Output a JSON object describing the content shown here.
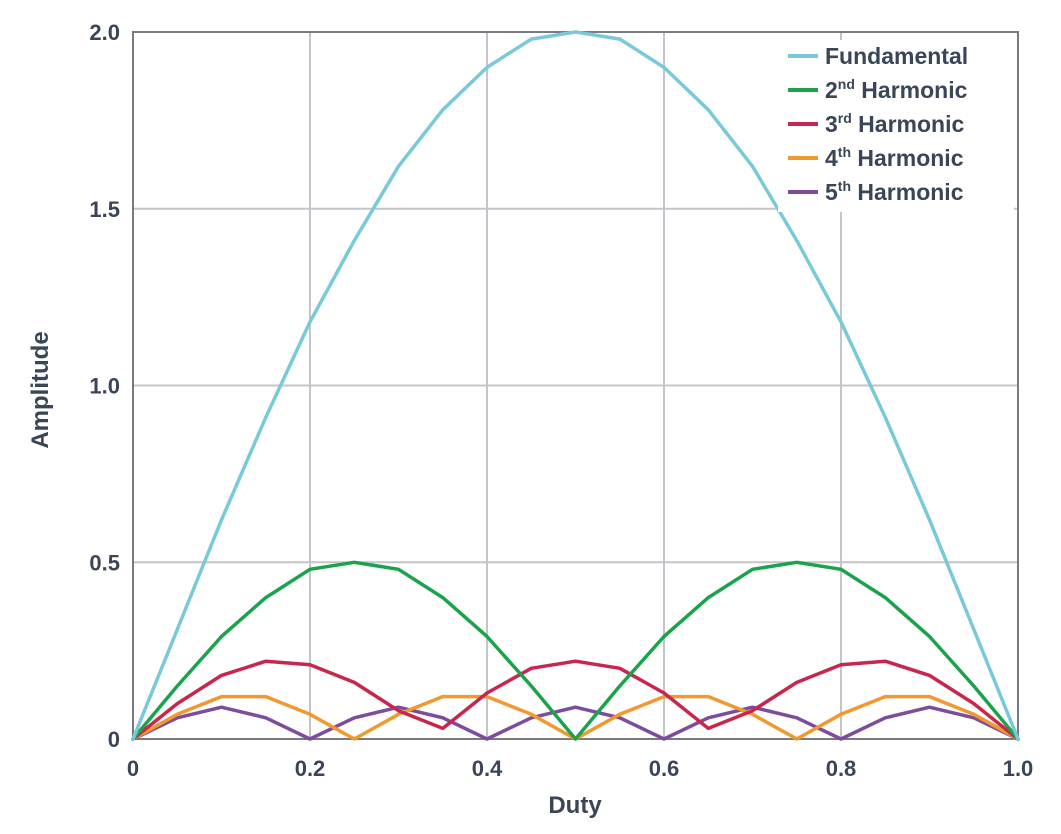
{
  "chart_data": {
    "type": "line",
    "title": "",
    "xlabel": "Duty",
    "ylabel": "Amplitude",
    "xlim": [
      0,
      1.0
    ],
    "ylim": [
      0,
      2.0
    ],
    "x_ticks": [
      "0",
      "0.2",
      "0.4",
      "0.6",
      "0.8",
      "1.0"
    ],
    "y_ticks": [
      "0",
      "0.5",
      "1.0",
      "1.5",
      "2.0"
    ],
    "grid": true,
    "legend_position": "top-right",
    "x": [
      0,
      0.05,
      0.1,
      0.15,
      0.2,
      0.25,
      0.3,
      0.35,
      0.4,
      0.45,
      0.5,
      0.55,
      0.6,
      0.65,
      0.7,
      0.75,
      0.8,
      0.85,
      0.9,
      0.95,
      1.0
    ],
    "series": [
      {
        "name": "Fundamental",
        "name_prefix": "Fundamental",
        "name_sup": "",
        "name_suffix": "",
        "color": "#79c9d9",
        "values": [
          0.0,
          0.31,
          0.62,
          0.91,
          1.18,
          1.41,
          1.62,
          1.78,
          1.9,
          1.98,
          2.0,
          1.98,
          1.9,
          1.78,
          1.62,
          1.41,
          1.18,
          0.91,
          0.62,
          0.31,
          0.0
        ]
      },
      {
        "name": "2nd Harmonic",
        "name_prefix": "2",
        "name_sup": "nd",
        "name_suffix": " Harmonic",
        "color": "#1aa34a",
        "values": [
          0.0,
          0.15,
          0.29,
          0.4,
          0.48,
          0.5,
          0.48,
          0.4,
          0.29,
          0.15,
          0.0,
          0.15,
          0.29,
          0.4,
          0.48,
          0.5,
          0.48,
          0.4,
          0.29,
          0.15,
          0.0
        ]
      },
      {
        "name": "3rd Harmonic",
        "name_prefix": "3",
        "name_sup": "rd",
        "name_suffix": " Harmonic",
        "color": "#c8264d",
        "values": [
          0.0,
          0.1,
          0.18,
          0.22,
          0.21,
          0.16,
          0.08,
          0.03,
          0.13,
          0.2,
          0.22,
          0.2,
          0.13,
          0.03,
          0.08,
          0.16,
          0.21,
          0.22,
          0.18,
          0.1,
          0.0
        ]
      },
      {
        "name": "4th Harmonic",
        "name_prefix": "4",
        "name_sup": "th",
        "name_suffix": " Harmonic",
        "color": "#f0992e",
        "values": [
          0.0,
          0.07,
          0.12,
          0.12,
          0.07,
          0.0,
          0.07,
          0.12,
          0.12,
          0.07,
          0.0,
          0.07,
          0.12,
          0.12,
          0.07,
          0.0,
          0.07,
          0.12,
          0.12,
          0.07,
          0.0
        ]
      },
      {
        "name": "5th Harmonic",
        "name_prefix": "5",
        "name_sup": "th",
        "name_suffix": " Harmonic",
        "color": "#7d4c9a",
        "values": [
          0.0,
          0.06,
          0.09,
          0.06,
          0.0,
          0.06,
          0.09,
          0.06,
          0.0,
          0.06,
          0.09,
          0.06,
          0.0,
          0.06,
          0.09,
          0.06,
          0.0,
          0.06,
          0.09,
          0.06,
          0.0
        ]
      }
    ]
  }
}
